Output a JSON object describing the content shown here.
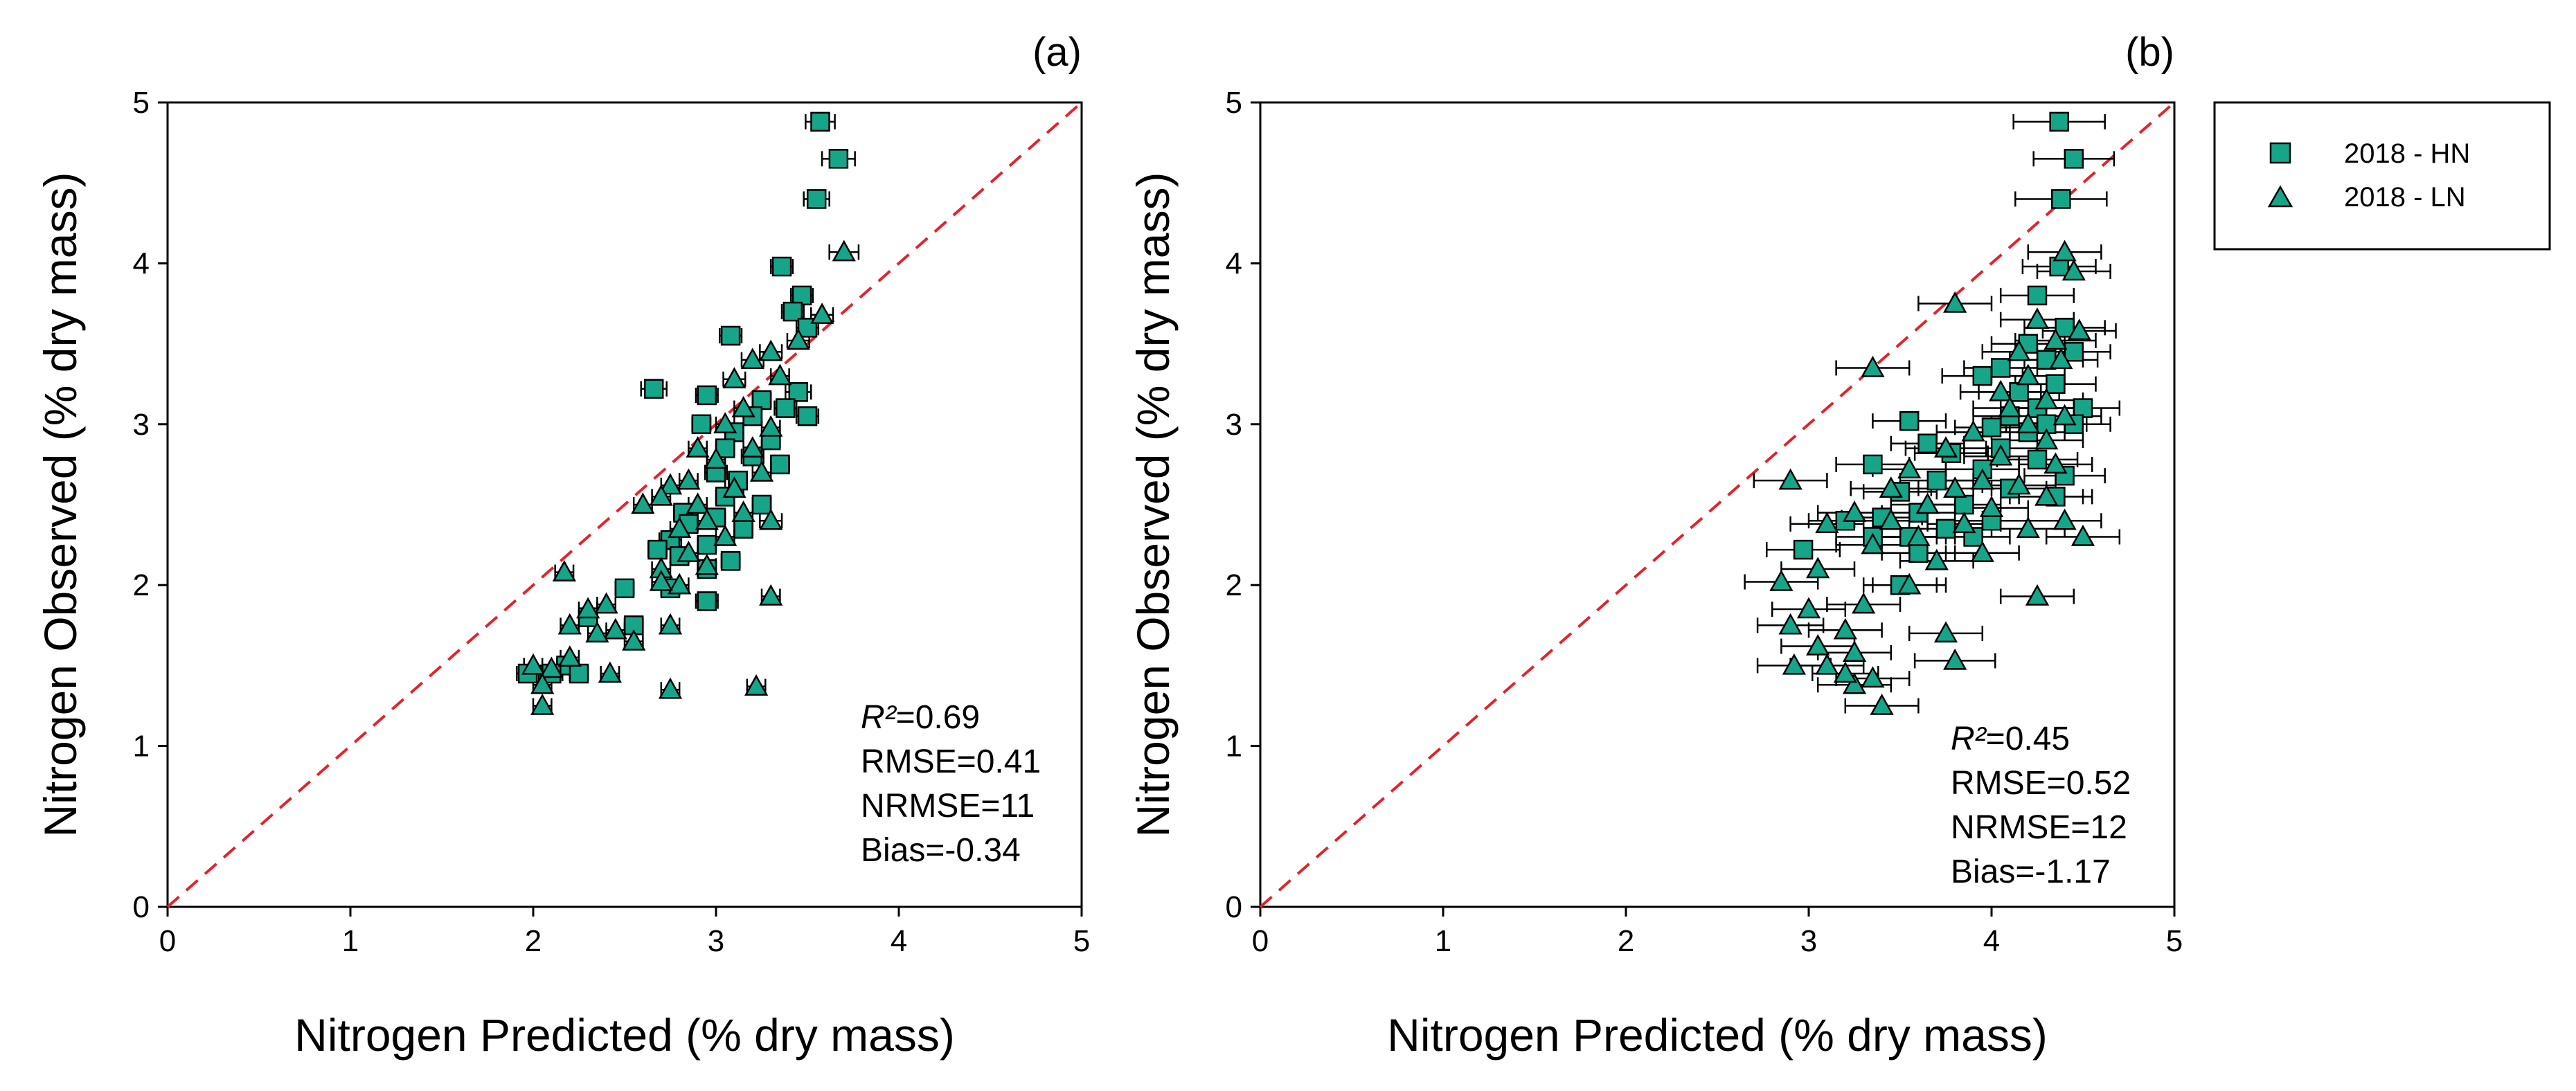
{
  "colors": {
    "marker_fill": "#17a589",
    "marker_stroke": "#000000",
    "identity_line": "#e3232c",
    "axis": "#000000"
  },
  "legend": {
    "entries": [
      {
        "label": "2018 - HN",
        "marker": "square"
      },
      {
        "label": "2018 - LN",
        "marker": "triangle"
      }
    ]
  },
  "chart_data": [
    {
      "type": "scatter",
      "panel_label": "(a)",
      "xlabel": "Nitrogen Predicted (% dry mass)",
      "ylabel": "Nitrogen Observed (% dry mass)",
      "xlim": [
        0,
        5
      ],
      "ylim": [
        0,
        5
      ],
      "xticks": [
        "0",
        "1",
        "2",
        "3",
        "4",
        "5"
      ],
      "yticks": [
        "0",
        "1",
        "2",
        "3",
        "4",
        "5"
      ],
      "identity_line": true,
      "stats": {
        "r2_label": "R²",
        "r2_value": "=0.69",
        "rmse": "RMSE=0.41",
        "nrmse": "NRMSE=11",
        "bias": "Bias=-0.34"
      },
      "series": [
        {
          "name": "2018 - HN",
          "marker": "square",
          "points": [
            [
              3.57,
              4.88,
              0.08
            ],
            [
              3.67,
              4.65,
              0.09
            ],
            [
              3.55,
              4.4,
              0.07
            ],
            [
              3.36,
              3.98,
              0.06
            ],
            [
              3.47,
              3.8,
              0.06
            ],
            [
              3.08,
              3.55,
              0.06
            ],
            [
              3.42,
              3.7,
              0.06
            ],
            [
              3.5,
              3.6,
              0.06
            ],
            [
              2.66,
              3.22,
              0.07
            ],
            [
              3.45,
              3.2,
              0.07
            ],
            [
              3.38,
              3.1,
              0.06
            ],
            [
              2.95,
              3.18,
              0.06
            ],
            [
              3.25,
              3.15,
              0.05
            ],
            [
              3.2,
              3.05,
              0.05
            ],
            [
              3.5,
              3.05,
              0.06
            ],
            [
              2.92,
              3.0,
              0.05
            ],
            [
              3.1,
              2.95,
              0.05
            ],
            [
              3.3,
              2.9,
              0.05
            ],
            [
              3.05,
              2.85,
              0.05
            ],
            [
              3.2,
              2.8,
              0.06
            ],
            [
              3.0,
              2.7,
              0.06
            ],
            [
              3.35,
              2.75,
              0.05
            ],
            [
              3.12,
              2.65,
              0.05
            ],
            [
              3.05,
              2.55,
              0.05
            ],
            [
              3.25,
              2.5,
              0.05
            ],
            [
              2.82,
              2.45,
              0.05
            ],
            [
              3.0,
              2.42,
              0.05
            ],
            [
              2.85,
              2.38,
              0.05
            ],
            [
              3.15,
              2.35,
              0.05
            ],
            [
              2.75,
              2.28,
              0.06
            ],
            [
              2.95,
              2.25,
              0.05
            ],
            [
              2.68,
              2.22,
              0.05
            ],
            [
              2.8,
              2.18,
              0.05
            ],
            [
              3.08,
              2.15,
              0.05
            ],
            [
              2.5,
              1.98,
              0.05
            ],
            [
              2.75,
              1.98,
              0.05
            ],
            [
              2.95,
              1.9,
              0.06
            ],
            [
              2.3,
              1.8,
              0.05
            ],
            [
              2.55,
              1.75,
              0.05
            ],
            [
              2.18,
              1.5,
              0.05
            ],
            [
              2.1,
              1.45,
              0.06
            ],
            [
              2.25,
              1.45,
              0.05
            ],
            [
              1.97,
              1.45,
              0.06
            ],
            [
              2.95,
              2.1,
              0.05
            ]
          ]
        },
        {
          "name": "2018 - LN",
          "marker": "triangle",
          "points": [
            [
              3.7,
              4.07,
              0.08
            ],
            [
              3.58,
              3.68,
              0.06
            ],
            [
              3.45,
              3.52,
              0.06
            ],
            [
              3.3,
              3.45,
              0.06
            ],
            [
              3.2,
              3.4,
              0.06
            ],
            [
              3.1,
              3.28,
              0.06
            ],
            [
              3.35,
              3.3,
              0.05
            ],
            [
              3.15,
              3.1,
              0.05
            ],
            [
              3.05,
              3.0,
              0.05
            ],
            [
              3.3,
              2.98,
              0.05
            ],
            [
              2.9,
              2.85,
              0.05
            ],
            [
              3.2,
              2.85,
              0.05
            ],
            [
              3.0,
              2.78,
              0.05
            ],
            [
              3.25,
              2.7,
              0.05
            ],
            [
              2.85,
              2.65,
              0.05
            ],
            [
              2.75,
              2.62,
              0.05
            ],
            [
              3.1,
              2.6,
              0.05
            ],
            [
              2.7,
              2.55,
              0.05
            ],
            [
              2.9,
              2.5,
              0.05
            ],
            [
              2.6,
              2.5,
              0.05
            ],
            [
              3.3,
              2.4,
              0.06
            ],
            [
              3.15,
              2.45,
              0.05
            ],
            [
              2.95,
              2.4,
              0.05
            ],
            [
              2.8,
              2.35,
              0.05
            ],
            [
              3.05,
              2.3,
              0.05
            ],
            [
              2.85,
              2.2,
              0.05
            ],
            [
              2.7,
              2.1,
              0.05
            ],
            [
              2.95,
              2.12,
              0.05
            ],
            [
              2.17,
              2.08,
              0.05
            ],
            [
              2.8,
              2.0,
              0.05
            ],
            [
              2.7,
              2.02,
              0.05
            ],
            [
              2.4,
              1.88,
              0.05
            ],
            [
              2.3,
              1.85,
              0.05
            ],
            [
              3.3,
              1.93,
              0.05
            ],
            [
              2.2,
              1.75,
              0.05
            ],
            [
              2.45,
              1.72,
              0.05
            ],
            [
              2.35,
              1.7,
              0.05
            ],
            [
              2.55,
              1.65,
              0.05
            ],
            [
              2.75,
              1.75,
              0.05
            ],
            [
              2.2,
              1.55,
              0.05
            ],
            [
              2.0,
              1.5,
              0.05
            ],
            [
              2.1,
              1.48,
              0.05
            ],
            [
              2.42,
              1.45,
              0.05
            ],
            [
              2.05,
              1.38,
              0.05
            ],
            [
              2.75,
              1.35,
              0.05
            ],
            [
              3.22,
              1.37,
              0.05
            ],
            [
              2.05,
              1.25,
              0.05
            ]
          ]
        }
      ]
    },
    {
      "type": "scatter",
      "panel_label": "(b)",
      "xlabel": "Nitrogen Predicted (% dry mass)",
      "ylabel": "Nitrogen Observed (% dry mass)",
      "xlim": [
        0,
        5
      ],
      "ylim": [
        0,
        5
      ],
      "xticks": [
        "0",
        "1",
        "2",
        "3",
        "4",
        "5"
      ],
      "yticks": [
        "0",
        "1",
        "2",
        "3",
        "4",
        "5"
      ],
      "identity_line": true,
      "stats": {
        "r2_label": "R²",
        "r2_value": "=0.45",
        "rmse": "RMSE=0.52",
        "nrmse": "NRMSE=12",
        "bias": "Bias=-1.17"
      },
      "series": [
        {
          "name": "2018 - HN",
          "marker": "square",
          "points": [
            [
              4.37,
              4.88,
              0.25
            ],
            [
              4.45,
              4.65,
              0.22
            ],
            [
              4.38,
              4.4,
              0.25
            ],
            [
              4.37,
              3.98,
              0.2
            ],
            [
              4.25,
              3.8,
              0.2
            ],
            [
              4.4,
              3.6,
              0.22
            ],
            [
              4.2,
              3.5,
              0.2
            ],
            [
              4.45,
              3.45,
              0.2
            ],
            [
              4.3,
              3.4,
              0.2
            ],
            [
              4.05,
              3.35,
              0.2
            ],
            [
              3.95,
              3.3,
              0.22
            ],
            [
              4.15,
              3.2,
              0.22
            ],
            [
              4.35,
              3.25,
              0.22
            ],
            [
              4.25,
              3.1,
              0.2
            ],
            [
              4.5,
              3.1,
              0.2
            ],
            [
              4.1,
              3.05,
              0.2
            ],
            [
              4.3,
              3.0,
              0.22
            ],
            [
              3.55,
              3.02,
              0.2
            ],
            [
              4.0,
              2.98,
              0.2
            ],
            [
              4.45,
              3.0,
              0.2
            ],
            [
              4.2,
              2.95,
              0.2
            ],
            [
              3.65,
              2.88,
              0.2
            ],
            [
              4.05,
              2.85,
              0.2
            ],
            [
              3.78,
              2.82,
              0.2
            ],
            [
              4.25,
              2.78,
              0.22
            ],
            [
              3.35,
              2.75,
              0.2
            ],
            [
              3.95,
              2.72,
              0.2
            ],
            [
              4.4,
              2.68,
              0.22
            ],
            [
              3.7,
              2.65,
              0.2
            ],
            [
              4.1,
              2.6,
              0.2
            ],
            [
              3.5,
              2.58,
              0.2
            ],
            [
              4.35,
              2.55,
              0.2
            ],
            [
              3.85,
              2.5,
              0.2
            ],
            [
              3.6,
              2.45,
              0.2
            ],
            [
              3.4,
              2.42,
              0.22
            ],
            [
              4.0,
              2.4,
              0.2
            ],
            [
              3.2,
              2.4,
              0.2
            ],
            [
              3.75,
              2.35,
              0.2
            ],
            [
              3.55,
              2.3,
              0.2
            ],
            [
              3.35,
              2.3,
              0.2
            ],
            [
              3.9,
              2.3,
              0.2
            ],
            [
              3.6,
              2.2,
              0.2
            ],
            [
              2.97,
              2.22,
              0.2
            ],
            [
              3.5,
              2.0,
              0.2
            ]
          ]
        },
        {
          "name": "2018 - LN",
          "marker": "triangle",
          "points": [
            [
              4.4,
              4.07,
              0.2
            ],
            [
              4.45,
              3.95,
              0.2
            ],
            [
              3.8,
              3.75,
              0.2
            ],
            [
              4.25,
              3.65,
              0.2
            ],
            [
              4.48,
              3.58,
              0.2
            ],
            [
              4.35,
              3.52,
              0.22
            ],
            [
              4.15,
              3.45,
              0.2
            ],
            [
              4.38,
              3.4,
              0.2
            ],
            [
              3.35,
              3.35,
              0.2
            ],
            [
              4.2,
              3.3,
              0.2
            ],
            [
              4.05,
              3.2,
              0.22
            ],
            [
              4.3,
              3.15,
              0.2
            ],
            [
              4.1,
              3.1,
              0.2
            ],
            [
              4.4,
              3.05,
              0.2
            ],
            [
              4.2,
              3.0,
              0.2
            ],
            [
              3.9,
              2.95,
              0.2
            ],
            [
              4.3,
              2.9,
              0.2
            ],
            [
              3.75,
              2.85,
              0.22
            ],
            [
              4.05,
              2.8,
              0.2
            ],
            [
              4.35,
              2.75,
              0.2
            ],
            [
              3.55,
              2.72,
              0.2
            ],
            [
              3.95,
              2.65,
              0.2
            ],
            [
              4.15,
              2.62,
              0.2
            ],
            [
              2.9,
              2.65,
              0.2
            ],
            [
              3.45,
              2.6,
              0.22
            ],
            [
              3.8,
              2.6,
              0.2
            ],
            [
              4.3,
              2.55,
              0.2
            ],
            [
              3.65,
              2.5,
              0.2
            ],
            [
              3.25,
              2.45,
              0.2
            ],
            [
              4.0,
              2.48,
              0.2
            ],
            [
              3.45,
              2.4,
              0.2
            ],
            [
              4.4,
              2.4,
              0.2
            ],
            [
              3.85,
              2.38,
              0.2
            ],
            [
              3.1,
              2.38,
              0.2
            ],
            [
              4.2,
              2.35,
              0.2
            ],
            [
              3.6,
              2.3,
              0.2
            ],
            [
              3.35,
              2.25,
              0.2
            ],
            [
              4.5,
              2.3,
              0.2
            ],
            [
              3.95,
              2.2,
              0.2
            ],
            [
              3.7,
              2.15,
              0.2
            ],
            [
              3.05,
              2.1,
              0.2
            ],
            [
              3.55,
              2.0,
              0.2
            ],
            [
              2.85,
              2.02,
              0.2
            ],
            [
              4.25,
              1.93,
              0.2
            ],
            [
              3.3,
              1.88,
              0.2
            ],
            [
              3.0,
              1.85,
              0.2
            ],
            [
              2.9,
              1.75,
              0.18
            ],
            [
              3.2,
              1.72,
              0.2
            ],
            [
              3.75,
              1.7,
              0.2
            ],
            [
              3.05,
              1.62,
              0.2
            ],
            [
              3.25,
              1.58,
              0.2
            ],
            [
              3.8,
              1.53,
              0.22
            ],
            [
              2.92,
              1.5,
              0.2
            ],
            [
              3.1,
              1.5,
              0.2
            ],
            [
              3.35,
              1.42,
              0.2
            ],
            [
              3.25,
              1.38,
              0.2
            ],
            [
              3.4,
              1.25,
              0.2
            ],
            [
              3.2,
              1.45,
              0.18
            ]
          ]
        }
      ]
    }
  ]
}
